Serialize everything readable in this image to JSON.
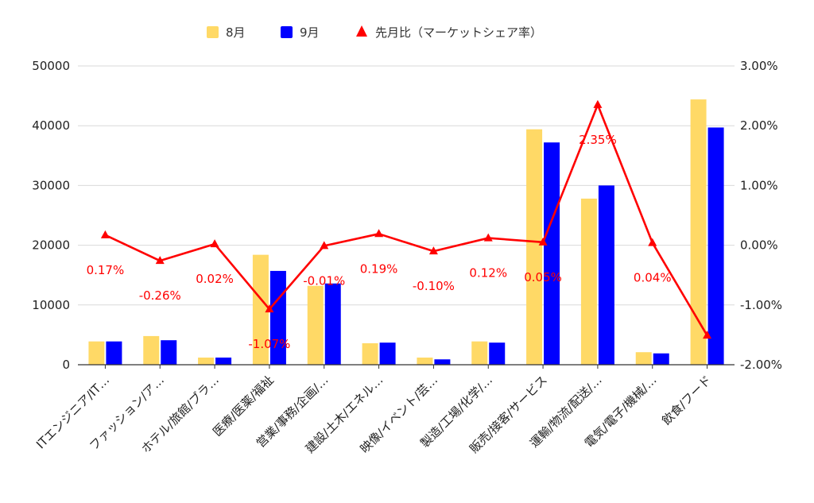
{
  "chart_data": {
    "type": "bar",
    "categories": [
      "ITエンジニア/IT…",
      "ファッション/ア…",
      "ホテル/旅館/ブラ…",
      "医療/医薬/福祉",
      "営業/事務/企画/…",
      "建設/土木/エネル…",
      "映像/イベント/芸…",
      "製造/工場/化学/…",
      "販売/接客/サービス",
      "運輸/物流/配送/…",
      "電気/電子/機械/…",
      "飲食/フード"
    ],
    "series": [
      {
        "name": "8月",
        "type": "bar",
        "axis": "left",
        "color": "#ffd966",
        "values": [
          3900,
          4800,
          1200,
          18400,
          13200,
          3600,
          1200,
          3900,
          39400,
          27800,
          2100,
          44400
        ]
      },
      {
        "name": "9月",
        "type": "bar",
        "axis": "left",
        "color": "#0000ff",
        "values": [
          3900,
          4100,
          1200,
          15700,
          13600,
          3700,
          900,
          3700,
          37200,
          30000,
          1900,
          39700
        ]
      },
      {
        "name": "先月比（マーケットシェア率）",
        "type": "line",
        "axis": "right",
        "color": "#ff0000",
        "values": [
          0.17,
          -0.26,
          0.02,
          -1.07,
          -0.01,
          0.19,
          -0.1,
          0.12,
          0.05,
          2.35,
          0.04,
          -1.51
        ],
        "labels": [
          "0.17%",
          "-0.26%",
          "0.02%",
          "-1.07%",
          "-0.01%",
          "0.19%",
          "-0.10%",
          "0.12%",
          "0.05%",
          "2.35%",
          "0.04%",
          ""
        ]
      }
    ],
    "y_left": {
      "min": 0,
      "max": 50000,
      "ticks": [
        "0",
        "10000",
        "20000",
        "30000",
        "40000",
        "50000"
      ]
    },
    "y_right": {
      "min": -2,
      "max": 3,
      "ticks": [
        "-2.00%",
        "-1.00%",
        "0.00%",
        "1.00%",
        "2.00%",
        "3.00%"
      ]
    },
    "grid": true,
    "legend_position": "top"
  }
}
